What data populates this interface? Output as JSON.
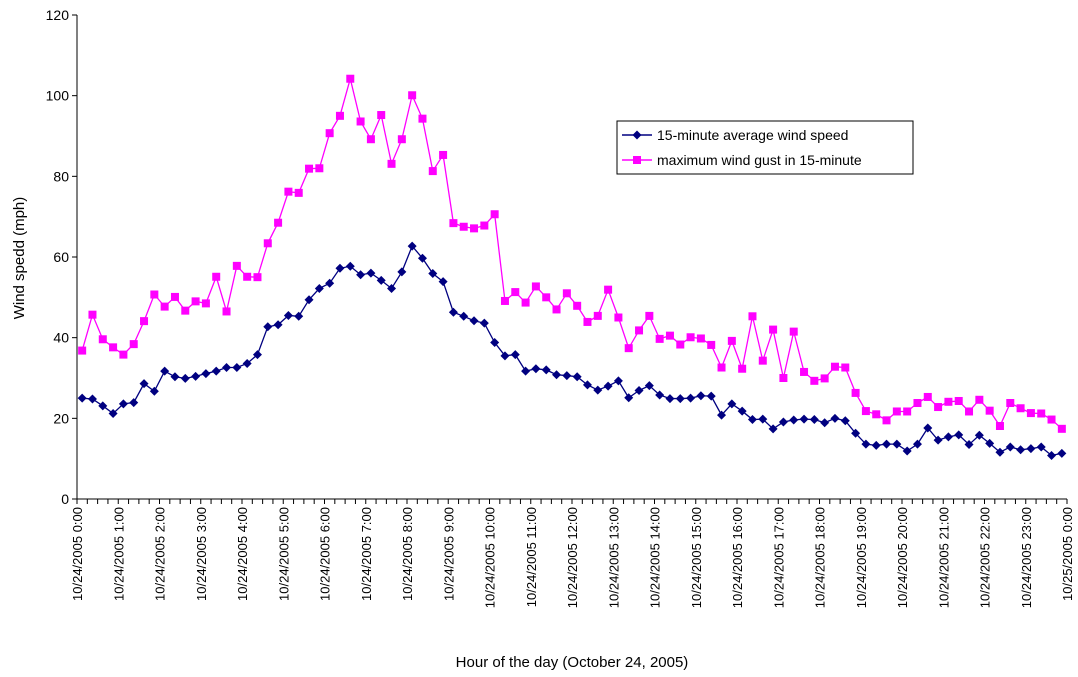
{
  "chart_data": {
    "type": "line",
    "title": "",
    "xlabel": "Hour of the day (October 24, 2005)",
    "ylabel": "Wind spedd (mph)",
    "ylim": [
      0,
      120
    ],
    "yticks": [
      0,
      20,
      40,
      60,
      80,
      100,
      120
    ],
    "grid": false,
    "legend_position": "top-right",
    "x_tick_labels": [
      "10/24/2005 0:00",
      "10/24/2005 1:00",
      "10/24/2005 2:00",
      "10/24/2005 3:00",
      "10/24/2005 4:00",
      "10/24/2005 5:00",
      "10/24/2005 6:00",
      "10/24/2005 7:00",
      "10/24/2005 8:00",
      "10/24/2005 9:00",
      "10/24/2005 10:00",
      "10/24/2005 11:00",
      "10/24/2005 12:00",
      "10/24/2005 13:00",
      "10/24/2005 14:00",
      "10/24/2005 15:00",
      "10/24/2005 16:00",
      "10/24/2005 17:00",
      "10/24/2005 18:00",
      "10/24/2005 19:00",
      "10/24/2005 20:00",
      "10/24/2005 21:00",
      "10/24/2005 22:00",
      "10/24/2005 23:00",
      "10/25/2005 0:00"
    ],
    "series": [
      {
        "name": "15-minute average wind speed",
        "color": "#000080",
        "marker": "diamond",
        "values": [
          25.0,
          24.8,
          23.1,
          21.2,
          23.6,
          23.9,
          28.6,
          26.7,
          31.7,
          30.3,
          29.9,
          30.4,
          31.1,
          31.7,
          32.6,
          32.6,
          33.6,
          35.8,
          42.7,
          43.2,
          45.5,
          45.3,
          49.4,
          52.2,
          53.5,
          57.2,
          57.7,
          55.6,
          56.0,
          54.2,
          52.2,
          56.3,
          62.7,
          59.7,
          55.9,
          53.9,
          46.3,
          45.3,
          44.2,
          43.6,
          38.8,
          35.5,
          35.8,
          31.7,
          32.3,
          32.0,
          30.8,
          30.6,
          30.3,
          28.3,
          27.0,
          28.0,
          29.3,
          25.1,
          26.9,
          28.1,
          25.8,
          24.9,
          24.9,
          25.0,
          25.6,
          25.5,
          20.8,
          23.6,
          21.8,
          19.7,
          19.8,
          17.4,
          19.1,
          19.6,
          19.8,
          19.7,
          18.9,
          20.0,
          19.4,
          16.3,
          13.6,
          13.3,
          13.6,
          13.6,
          11.9,
          13.6,
          17.6,
          14.6,
          15.4,
          15.9,
          13.5,
          15.8,
          13.8,
          11.6,
          12.9,
          12.2,
          12.5,
          12.9,
          10.8,
          11.3
        ]
      },
      {
        "name": "maximum wind gust in 15-minute",
        "color": "#FF00FF",
        "marker": "square",
        "values": [
          36.8,
          45.7,
          39.6,
          37.6,
          35.8,
          38.4,
          44.1,
          50.7,
          47.7,
          50.1,
          46.7,
          49.0,
          48.5,
          55.1,
          46.5,
          57.8,
          55.1,
          55.0,
          63.4,
          68.5,
          76.2,
          75.9,
          81.9,
          82.0,
          90.7,
          95.0,
          104.2,
          93.6,
          89.2,
          95.2,
          83.1,
          89.2,
          100.1,
          94.3,
          81.3,
          85.3,
          68.4,
          67.5,
          67.1,
          67.8,
          70.6,
          49.1,
          51.3,
          48.7,
          52.7,
          50.0,
          47.0,
          51.0,
          47.9,
          43.9,
          45.4,
          51.9,
          45.0,
          37.4,
          41.8,
          45.4,
          39.7,
          40.5,
          38.3,
          40.1,
          39.8,
          38.2,
          32.6,
          39.2,
          32.3,
          45.3,
          34.3,
          42.0,
          30.0,
          41.5,
          31.5,
          29.3,
          29.9,
          32.8,
          32.6,
          26.3,
          21.8,
          21.0,
          19.5,
          21.7,
          21.7,
          23.8,
          25.3,
          22.8,
          24.1,
          24.3,
          21.7,
          24.6,
          21.9,
          18.1,
          23.8,
          22.5,
          21.3,
          21.2,
          19.7,
          17.4
        ]
      }
    ]
  }
}
